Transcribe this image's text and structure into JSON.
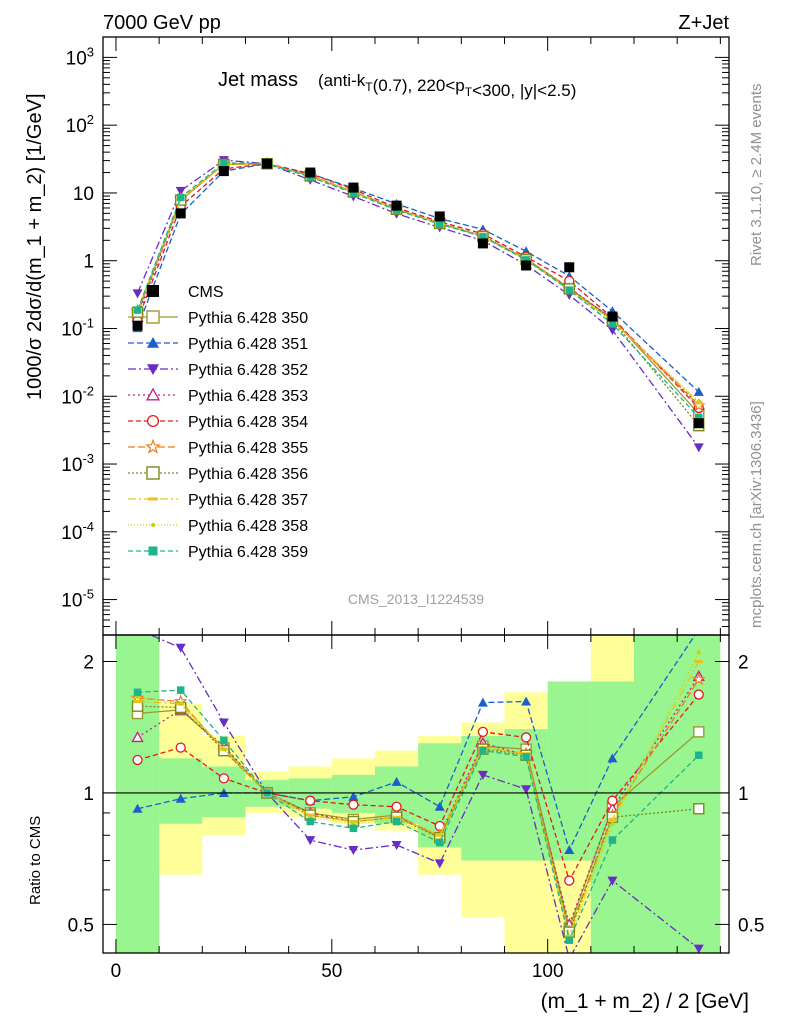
{
  "header": {
    "left": "7000 GeV pp",
    "right": "Z+Jet"
  },
  "side_labels": {
    "rivet": "Rivet 3.1.10, ≥ 2.4M events",
    "mcplots": "mcplots.cern.ch [arXiv:1306.3436]"
  },
  "chart_data": {
    "type": "line",
    "title_main": "Jet mass",
    "title_sub": "(anti-k_T(0.7), 220<p_T<300, |y|<2.5)",
    "watermark": "CMS_2013_I1224539",
    "xlabel": "(m_1 + m_2) / 2 [GeV]",
    "ylabel": "1000/σ 2dσ/d(m_1 + m_2) [1/GeV]",
    "ratio_ylabel": "Ratio to CMS",
    "xlim": [
      -3,
      142
    ],
    "ylim": [
      3e-06,
      2000
    ],
    "yscale": "log",
    "ratio_ylim": [
      0.43,
      2.3
    ],
    "ratio_yscale": "log",
    "x_ticks": [
      "0",
      "50",
      "100"
    ],
    "y_ticks": [
      "10^-5",
      "10^-4",
      "10^-3",
      "10^-2",
      "10^-1",
      "1",
      "10",
      "10^2",
      "10^3"
    ],
    "ratio_ticks": [
      "0.5",
      "1",
      "2"
    ],
    "x": [
      5,
      15,
      25,
      35,
      45,
      55,
      65,
      75,
      85,
      95,
      105,
      115,
      135
    ],
    "bin_edges": [
      0,
      10,
      20,
      30,
      40,
      50,
      60,
      70,
      80,
      90,
      100,
      110,
      120,
      130,
      140
    ],
    "data": {
      "name": "CMS",
      "values": [
        0.11,
        5.0,
        21,
        27,
        20,
        12,
        6.5,
        4.5,
        1.8,
        0.85,
        0.8,
        0.15,
        0.004
      ]
    },
    "band_yellow": [
      [
        0.4,
        2.3
      ],
      [
        0.65,
        1.6
      ],
      [
        0.8,
        1.35
      ],
      [
        0.9,
        1.12
      ],
      [
        0.88,
        1.15
      ],
      [
        0.85,
        1.2
      ],
      [
        0.82,
        1.25
      ],
      [
        0.65,
        1.35
      ],
      [
        0.52,
        1.45
      ],
      [
        0.43,
        1.7
      ],
      [
        0.43,
        1.68
      ],
      [
        0.43,
        2.3
      ],
      [
        0.43,
        2.3
      ],
      [
        0.43,
        2.3
      ]
    ],
    "band_green": [
      [
        0.43,
        2.3
      ],
      [
        0.85,
        1.2
      ],
      [
        0.88,
        1.15
      ],
      [
        0.93,
        1.07
      ],
      [
        0.92,
        1.08
      ],
      [
        0.9,
        1.1
      ],
      [
        0.85,
        1.15
      ],
      [
        0.75,
        1.3
      ],
      [
        0.7,
        1.35
      ],
      [
        0.7,
        1.4
      ],
      [
        0.7,
        1.8
      ],
      [
        0.43,
        1.8
      ],
      [
        0.43,
        2.3
      ],
      [
        0.43,
        2.3
      ]
    ],
    "series": [
      {
        "name": "Pythia 6.428 350",
        "color": "#9c9a2f",
        "marker": "open-square",
        "dash": "none",
        "ratio": [
          1.52,
          1.55,
          1.27,
          1.0,
          0.9,
          0.87,
          0.89,
          0.79,
          1.28,
          1.26,
          0.49,
          0.93,
          1.38
        ]
      },
      {
        "name": "Pythia 6.428 351",
        "color": "#1b5fcc",
        "marker": "triangle-up",
        "dash": "6,3",
        "ratio": [
          0.92,
          0.97,
          1.0,
          1.0,
          0.96,
          0.98,
          1.06,
          0.93,
          1.61,
          1.62,
          0.74,
          1.2,
          2.9
        ]
      },
      {
        "name": "Pythia 6.428 352",
        "color": "#6a2cc6",
        "marker": "triangle-down",
        "dash": "8,3,2,3",
        "ratio": [
          3.0,
          2.15,
          1.45,
          1.0,
          0.78,
          0.74,
          0.76,
          0.69,
          1.1,
          1.02,
          0.39,
          0.63,
          0.44
        ]
      },
      {
        "name": "Pythia 6.428 353",
        "color": "#c21f8a",
        "marker": "open-triangle",
        "dash": "2,3",
        "ratio": [
          1.34,
          1.55,
          1.28,
          1.0,
          0.9,
          0.86,
          0.88,
          0.8,
          1.3,
          1.22,
          0.5,
          0.92,
          1.85
        ]
      },
      {
        "name": "Pythia 6.428 354",
        "color": "#e31a1c",
        "marker": "open-circle",
        "dash": "5,3",
        "ratio": [
          1.19,
          1.27,
          1.08,
          1.0,
          0.96,
          0.94,
          0.93,
          0.84,
          1.38,
          1.34,
          0.63,
          0.96,
          1.68
        ]
      },
      {
        "name": "Pythia 6.428 355",
        "color": "#f07e1b",
        "marker": "open-star",
        "dash": "7,3",
        "ratio": [
          1.65,
          1.62,
          1.25,
          1.0,
          0.89,
          0.86,
          0.88,
          0.8,
          1.27,
          1.23,
          0.48,
          0.89,
          1.82
        ]
      },
      {
        "name": "Pythia 6.428 356",
        "color": "#7a8a1a",
        "marker": "open-square",
        "dash": "2,2",
        "ratio": [
          1.58,
          1.57,
          1.25,
          1.0,
          0.89,
          0.86,
          0.88,
          0.79,
          1.26,
          1.22,
          0.48,
          0.88,
          0.92
        ]
      },
      {
        "name": "Pythia 6.428 357",
        "color": "#e8c21b",
        "marker": "dash",
        "dash": "8,3,2,3",
        "ratio": [
          1.62,
          1.6,
          1.26,
          1.0,
          0.89,
          0.86,
          0.88,
          0.8,
          1.27,
          1.23,
          0.47,
          0.87,
          2.0
        ]
      },
      {
        "name": "Pythia 6.428 358",
        "color": "#c7d400",
        "marker": "dot",
        "dash": "1,2",
        "ratio": [
          1.66,
          1.6,
          1.26,
          1.0,
          0.88,
          0.85,
          0.87,
          0.78,
          1.27,
          1.22,
          0.46,
          0.85,
          2.1
        ]
      },
      {
        "name": "Pythia 6.428 359",
        "color": "#1eb48c",
        "marker": "filled-square",
        "dash": "5,3",
        "ratio": [
          1.7,
          1.72,
          1.32,
          1.0,
          0.86,
          0.83,
          0.86,
          0.77,
          1.25,
          1.21,
          0.46,
          0.78,
          1.22
        ]
      }
    ]
  }
}
